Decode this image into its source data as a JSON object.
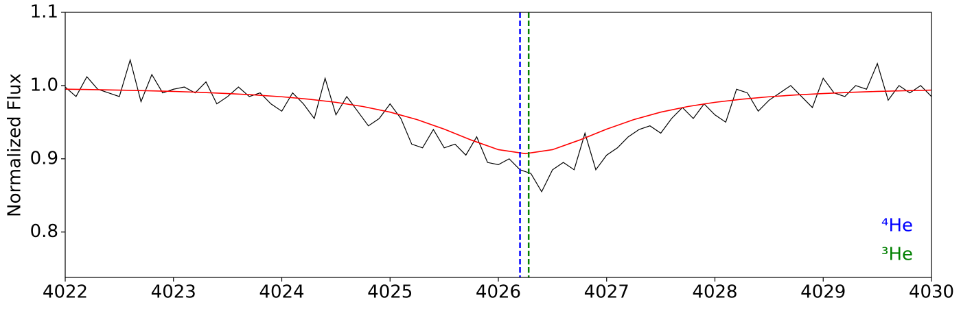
{
  "chart_data": {
    "type": "line",
    "ylabel": "Normalized Flux",
    "xlim": [
      4022,
      4030
    ],
    "xticks": [
      4022,
      4023,
      4024,
      4025,
      4026,
      4027,
      4028,
      4029,
      4030
    ],
    "ylim": [
      0.738,
      1.1
    ],
    "yticks": [
      0.8,
      0.9,
      {
        "value": 1,
        "label": "1.0"
      },
      1.1
    ],
    "series": [
      {
        "color": "#000000",
        "width": 1.2,
        "x": [
          4022.0,
          4022.1,
          4022.2,
          4022.3,
          4022.4,
          4022.5,
          4022.6,
          4022.7,
          4022.8,
          4022.9,
          4023.0,
          4023.1,
          4023.2,
          4023.3,
          4023.4,
          4023.5,
          4023.6,
          4023.7,
          4023.8,
          4023.9,
          4024.0,
          4024.1,
          4024.2,
          4024.3,
          4024.4,
          4024.5,
          4024.6,
          4024.7,
          4024.8,
          4024.9,
          4025.0,
          4025.1,
          4025.2,
          4025.3,
          4025.4,
          4025.5,
          4025.6,
          4025.7,
          4025.8,
          4025.9,
          4026.0,
          4026.1,
          4026.2,
          4026.3,
          4026.4,
          4026.5,
          4026.6,
          4026.7,
          4026.8,
          4026.9,
          4027.0,
          4027.1,
          4027.2,
          4027.3,
          4027.4,
          4027.5,
          4027.6,
          4027.7,
          4027.8,
          4027.9,
          4028.0,
          4028.1,
          4028.2,
          4028.3,
          4028.4,
          4028.5,
          4028.6,
          4028.7,
          4028.8,
          4028.9,
          4029.0,
          4029.1,
          4029.2,
          4029.3,
          4029.4,
          4029.5,
          4029.6,
          4029.7,
          4029.8,
          4029.9,
          4030.0
        ],
        "values": [
          0.998,
          0.985,
          1.012,
          0.995,
          0.99,
          0.985,
          1.035,
          0.978,
          1.015,
          0.99,
          0.995,
          0.998,
          0.99,
          1.005,
          0.975,
          0.985,
          0.998,
          0.985,
          0.99,
          0.975,
          0.965,
          0.99,
          0.975,
          0.955,
          1.01,
          0.96,
          0.985,
          0.965,
          0.945,
          0.955,
          0.975,
          0.955,
          0.92,
          0.915,
          0.94,
          0.915,
          0.92,
          0.905,
          0.93,
          0.895,
          0.892,
          0.9,
          0.885,
          0.88,
          0.855,
          0.885,
          0.895,
          0.885,
          0.935,
          0.885,
          0.905,
          0.915,
          0.93,
          0.94,
          0.945,
          0.935,
          0.955,
          0.97,
          0.955,
          0.975,
          0.96,
          0.95,
          0.995,
          0.99,
          0.965,
          0.98,
          0.99,
          1.0,
          0.985,
          0.97,
          1.01,
          0.99,
          0.985,
          1.0,
          0.995,
          1.03,
          0.98,
          1.0,
          0.99,
          1.0,
          0.985
        ]
      },
      {
        "color": "#ff0000",
        "width": 1.6,
        "x": [
          4022,
          4022.25,
          4022.5,
          4022.75,
          4023,
          4023.25,
          4023.5,
          4023.75,
          4024,
          4024.25,
          4024.5,
          4024.75,
          4025,
          4025.25,
          4025.5,
          4025.75,
          4026,
          4026.25,
          4026.5,
          4026.75,
          4027,
          4027.25,
          4027.5,
          4027.75,
          4028,
          4028.25,
          4028.5,
          4028.75,
          4029,
          4029.25,
          4029.5,
          4029.75,
          4030
        ],
        "values": [
          0.9951,
          0.9945,
          0.9938,
          0.993,
          0.992,
          0.9907,
          0.9891,
          0.9872,
          0.9847,
          0.9814,
          0.9771,
          0.9714,
          0.9637,
          0.9535,
          0.9405,
          0.9256,
          0.9125,
          0.907,
          0.9125,
          0.9256,
          0.9405,
          0.9535,
          0.9637,
          0.9714,
          0.9771,
          0.9814,
          0.9847,
          0.9872,
          0.9891,
          0.9907,
          0.992,
          0.993,
          0.9938
        ]
      }
    ],
    "vlines": [
      {
        "x": 4026.2,
        "color": "#0000ff",
        "label": "⁴He"
      },
      {
        "x": 4026.28,
        "color": "#008000",
        "label": "³He"
      }
    ]
  }
}
